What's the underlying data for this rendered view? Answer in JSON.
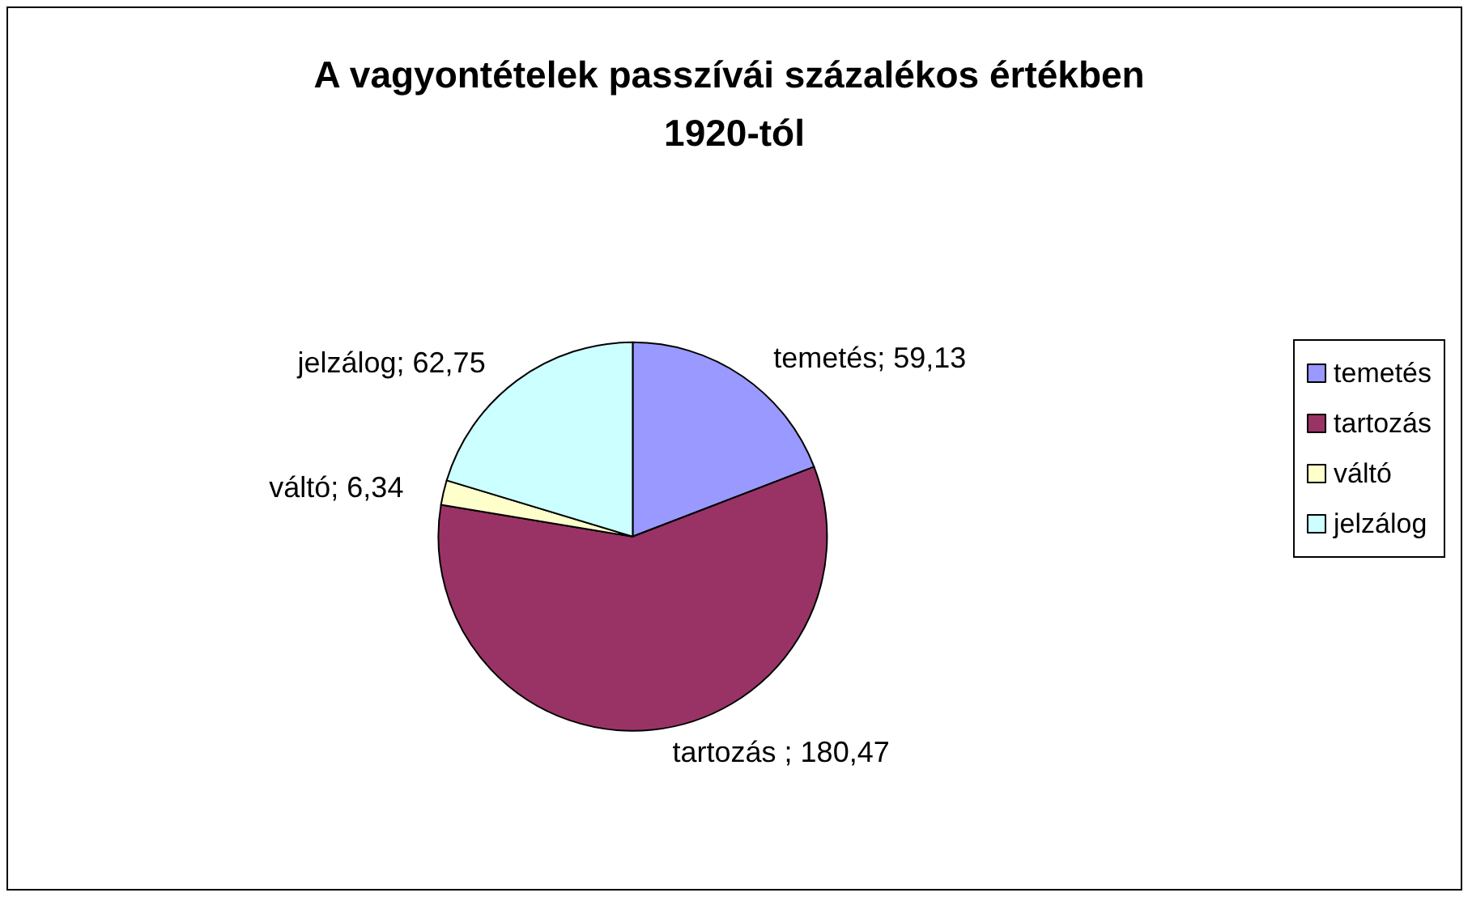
{
  "chart_data": {
    "type": "pie",
    "title": "A vagyontételek passzívái százalékos értékben 1920-tól",
    "categories": [
      "temetés",
      "tartozás",
      "váltó",
      "jelzálog"
    ],
    "values": [
      59.13,
      180.47,
      6.34,
      62.75
    ],
    "value_labels": [
      "temetés; 59,13",
      "tartozás ; 180,47",
      "váltó; 6,34",
      "jelzálog; 62,75"
    ],
    "colors": [
      "#9999ff",
      "#993366",
      "#ffffcc",
      "#ccffff"
    ],
    "legend": "right"
  }
}
